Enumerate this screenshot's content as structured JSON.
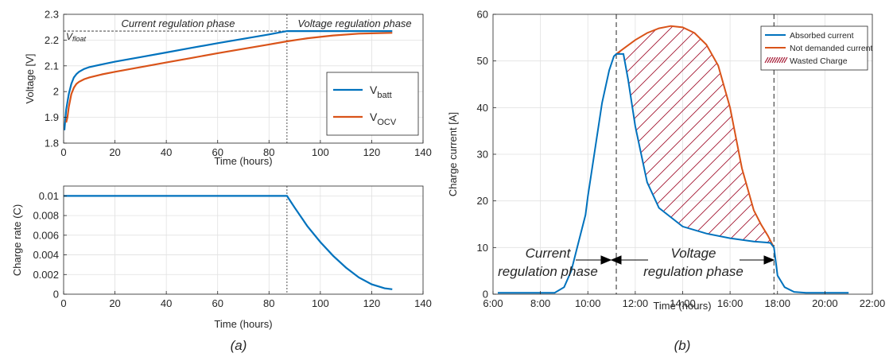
{
  "colors": {
    "blue": "#0072BD",
    "orange": "#D95319",
    "hatch": "#A2142F",
    "grid": "#e1e1e1",
    "axis": "#262626"
  },
  "panels": [
    {
      "label": "(a)"
    },
    {
      "label": "(b)"
    }
  ],
  "chart_data": [
    {
      "type": "line",
      "xlabel": "Time (hours)",
      "ylabel": "Voltage [V]",
      "xlim": [
        0,
        140
      ],
      "ylim": [
        1.8,
        2.3
      ],
      "xticks": [
        "0",
        "20",
        "40",
        "60",
        "80",
        "100",
        "120",
        "140"
      ],
      "yticks": [
        "1.8",
        "1.9",
        "2",
        "2.1",
        "2.2",
        "2.3"
      ],
      "grid": true,
      "legend_position": "right",
      "annotations": {
        "phase_left": "Current regulation phase",
        "phase_right": "Voltage regulation phase",
        "vfloat_main": "V",
        "vfloat_sub": "float",
        "vfloat_value": 2.235,
        "phase_boundary_x": 87
      },
      "series": [
        {
          "name_main": "V",
          "name_sub": "batt",
          "x": [
            0.3,
            1,
            2,
            3,
            4,
            5,
            6,
            8,
            10,
            15,
            20,
            30,
            40,
            50,
            60,
            70,
            80,
            87,
            95,
            105,
            115,
            128
          ],
          "y": [
            1.85,
            1.93,
            1.99,
            2.03,
            2.055,
            2.068,
            2.077,
            2.088,
            2.095,
            2.106,
            2.116,
            2.134,
            2.152,
            2.17,
            2.188,
            2.205,
            2.222,
            2.235,
            2.235,
            2.235,
            2.235,
            2.235
          ]
        },
        {
          "name_main": "V",
          "name_sub": "OCV",
          "x": [
            1,
            1.5,
            2,
            3,
            4,
            5,
            6,
            8,
            10,
            15,
            20,
            30,
            40,
            50,
            60,
            70,
            80,
            87,
            95,
            105,
            115,
            128
          ],
          "y": [
            1.88,
            1.9,
            1.94,
            1.99,
            2.015,
            2.03,
            2.038,
            2.048,
            2.055,
            2.067,
            2.077,
            2.095,
            2.113,
            2.131,
            2.149,
            2.166,
            2.183,
            2.195,
            2.207,
            2.218,
            2.225,
            2.228
          ]
        }
      ]
    },
    {
      "type": "line",
      "xlabel": "Time (hours)",
      "ylabel": "Charge rate (C)",
      "xlim": [
        0,
        140
      ],
      "ylim": [
        0,
        0.011
      ],
      "xticks": [
        "0",
        "20",
        "40",
        "60",
        "80",
        "100",
        "120",
        "140"
      ],
      "yticks": [
        "0",
        "0.002",
        "0.004",
        "0.006",
        "0.008",
        "0.01"
      ],
      "grid": true,
      "phase_boundary_x": 87,
      "series": [
        {
          "x": [
            0,
            87,
            90,
            95,
            100,
            105,
            110,
            115,
            120,
            125,
            128
          ],
          "y": [
            0.01,
            0.01,
            0.0088,
            0.0069,
            0.0053,
            0.0039,
            0.0027,
            0.0017,
            0.001,
            0.0006,
            0.0005
          ]
        }
      ]
    },
    {
      "type": "line",
      "xlabel": "Time (hours)",
      "ylabel": "Charge current [A]",
      "xlim": [
        6,
        22
      ],
      "ylim": [
        0,
        60
      ],
      "xticks": [
        "6:00",
        "8:00",
        "10:00",
        "12:00",
        "14:00",
        "16:00",
        "18:00",
        "20:00",
        "22:00"
      ],
      "yticks": [
        "0",
        "10",
        "20",
        "30",
        "40",
        "50",
        "60"
      ],
      "grid": true,
      "legend_position": "top-right",
      "annotations": {
        "left_line1": "Current",
        "left_line2": "regulation phase",
        "right_line1": "Voltage",
        "right_line2": "regulation phase",
        "boundary_1": 11.2,
        "boundary_2": 17.85
      },
      "series": [
        {
          "name": "Absorbed current",
          "x": [
            6.2,
            8.6,
            9.0,
            9.3,
            9.6,
            9.9,
            10.0,
            10.3,
            10.6,
            10.9,
            11.1,
            11.2,
            11.5,
            11.7,
            12.0,
            12.5,
            13.0,
            14.0,
            15.0,
            16.0,
            17.0,
            17.5,
            17.7,
            17.85,
            18.0,
            18.3,
            18.7,
            19.2,
            20.0,
            21.0
          ],
          "y": [
            0.3,
            0.3,
            1.5,
            5,
            11,
            17,
            21,
            31,
            41,
            48,
            51,
            51.5,
            51.5,
            46,
            36,
            24,
            18.5,
            14.5,
            13,
            12,
            11.3,
            11.1,
            11,
            10,
            4,
            1.5,
            0.5,
            0.3,
            0.3,
            0.3
          ]
        },
        {
          "name": "Not demanded current",
          "x": [
            11.2,
            11.6,
            12.0,
            12.5,
            13.0,
            13.5,
            14.0,
            14.5,
            15.0,
            15.5,
            16.0,
            16.5,
            17.0,
            17.3,
            17.6,
            17.85
          ],
          "y": [
            51.5,
            53,
            54.5,
            56,
            57,
            57.5,
            57.2,
            56,
            53.5,
            49,
            40,
            27,
            18,
            15,
            12.5,
            10
          ]
        },
        {
          "name": "Wasted Charge"
        }
      ]
    }
  ]
}
